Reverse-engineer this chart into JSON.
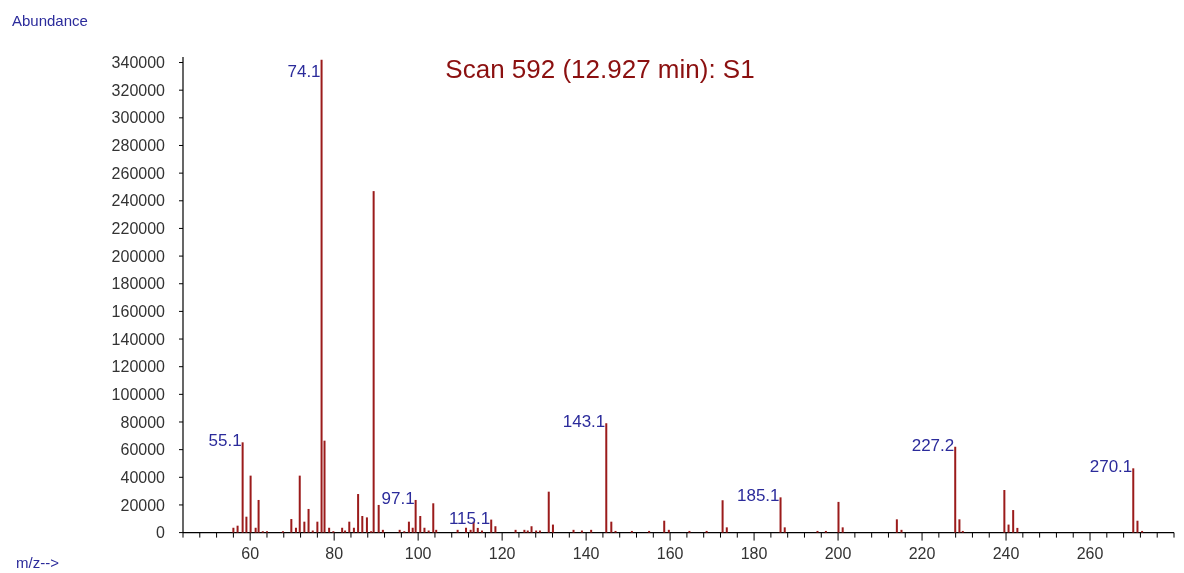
{
  "chart_data": {
    "type": "bar",
    "title": "Scan 592 (12.927 min): S1",
    "xlabel": "m/z-->",
    "ylabel": "Abundance",
    "x": [
      56.0,
      57.0,
      58.2,
      59.1,
      60.1,
      61.3,
      62.0,
      63.0,
      64.0,
      67.8,
      69.8,
      70.9,
      71.8,
      72.9,
      73.9,
      74.9,
      76.0,
      77.0,
      77.7,
      78.8,
      79.8,
      81.9,
      82.6,
      83.6,
      84.7,
      85.7,
      86.7,
      87.8,
      88.8,
      89.4,
      90.6,
      91.6,
      95.6,
      96.7,
      97.8,
      98.7,
      99.4,
      100.5,
      101.5,
      102.5,
      103.6,
      104.3,
      109.4,
      111.4,
      112.5,
      113.2,
      114.2,
      115.2,
      117.4,
      118.4,
      123.2,
      125.3,
      126.1,
      127.0,
      128.1,
      129.0,
      131.1,
      132.1,
      137.0,
      139.0,
      141.2,
      144.8,
      146.0,
      147.0,
      150.9,
      155.0,
      158.6,
      159.7,
      164.6,
      168.7,
      172.5,
      173.5,
      186.3,
      187.3,
      195.1,
      197.1,
      200.1,
      201.1,
      214.0,
      215.1,
      227.9,
      228.9,
      229.7,
      239.6,
      240.6,
      241.7,
      242.7,
      270.3,
      271.3,
      272.4
    ],
    "series": [
      {
        "color": "#9b1b1b",
        "values": [
          3500,
          5000,
          65300,
          11500,
          41200,
          3500,
          23600,
          1000,
          1000,
          1000,
          9800,
          3500,
          41200,
          7900,
          17100,
          1500,
          7900,
          342000,
          66500,
          3500,
          1000,
          3500,
          1500,
          7900,
          3500,
          27900,
          12000,
          11000,
          1000,
          247000,
          20000,
          2000,
          2000,
          1000,
          7900,
          3500,
          23600,
          12000,
          3500,
          1500,
          21200,
          2000,
          2000,
          3500,
          2000,
          7900,
          3400,
          1500,
          9400,
          4600,
          2000,
          2000,
          1500,
          4600,
          1500,
          1500,
          29600,
          5800,
          2000,
          1500,
          2000,
          79100,
          7900,
          1200,
          1200,
          1200,
          8600,
          2000,
          1200,
          1200,
          23400,
          3800,
          25500,
          3800,
          1200,
          1200,
          22200,
          3800,
          9600,
          2000,
          62100,
          9600,
          1200,
          30800,
          5800,
          16300,
          3400,
          46500,
          8600,
          1200
        ]
      }
    ],
    "xlim": [
      44,
      280
    ],
    "xticks": [
      {
        "value": 44,
        "label": null
      },
      {
        "value": 48,
        "label": null
      },
      {
        "value": 52,
        "label": null
      },
      {
        "value": 56,
        "label": null
      },
      60,
      {
        "value": 64,
        "label": null
      },
      {
        "value": 68,
        "label": null
      },
      {
        "value": 72,
        "label": null
      },
      {
        "value": 76,
        "label": null
      },
      80,
      {
        "value": 84,
        "label": null
      },
      {
        "value": 88,
        "label": null
      },
      {
        "value": 92,
        "label": null
      },
      {
        "value": 96,
        "label": null
      },
      100,
      {
        "value": 104,
        "label": null
      },
      {
        "value": 108,
        "label": null
      },
      {
        "value": 112,
        "label": null
      },
      {
        "value": 116,
        "label": null
      },
      120,
      {
        "value": 124,
        "label": null
      },
      {
        "value": 128,
        "label": null
      },
      {
        "value": 132,
        "label": null
      },
      {
        "value": 136,
        "label": null
      },
      140,
      {
        "value": 144,
        "label": null
      },
      {
        "value": 148,
        "label": null
      },
      {
        "value": 152,
        "label": null
      },
      {
        "value": 156,
        "label": null
      },
      160,
      {
        "value": 164,
        "label": null
      },
      {
        "value": 168,
        "label": null
      },
      {
        "value": 172,
        "label": null
      },
      {
        "value": 176,
        "label": null
      },
      180,
      {
        "value": 184,
        "label": null
      },
      {
        "value": 188,
        "label": null
      },
      {
        "value": 192,
        "label": null
      },
      {
        "value": 196,
        "label": null
      },
      200,
      {
        "value": 204,
        "label": null
      },
      {
        "value": 208,
        "label": null
      },
      {
        "value": 212,
        "label": null
      },
      {
        "value": 216,
        "label": null
      },
      220,
      {
        "value": 224,
        "label": null
      },
      {
        "value": 228,
        "label": null
      },
      {
        "value": 232,
        "label": null
      },
      {
        "value": 236,
        "label": null
      },
      240,
      {
        "value": 244,
        "label": null
      },
      {
        "value": 248,
        "label": null
      },
      {
        "value": 252,
        "label": null
      },
      {
        "value": 256,
        "label": null
      },
      260,
      {
        "value": 264,
        "label": null
      },
      {
        "value": 268,
        "label": null
      },
      {
        "value": 272,
        "label": null
      },
      {
        "value": 276,
        "label": null
      },
      {
        "value": 280,
        "label": null
      }
    ],
    "ylim": [
      0,
      344000
    ],
    "yticks": [
      0,
      20000,
      40000,
      60000,
      80000,
      100000,
      120000,
      140000,
      160000,
      180000,
      200000,
      220000,
      240000,
      260000,
      280000,
      300000,
      320000,
      340000
    ],
    "annotations": [
      {
        "text": "55.1",
        "x": 58.2,
        "y": 65300
      },
      {
        "text": "74.1",
        "x": 77.0,
        "y": 342000
      },
      {
        "text": "97.1",
        "x": 99.4,
        "y": 23600
      },
      {
        "text": "115.1",
        "x": 117.4,
        "y": 9400
      },
      {
        "text": "143.1",
        "x": 144.8,
        "y": 79100
      },
      {
        "text": "185.1",
        "x": 186.3,
        "y": 25500
      },
      {
        "text": "227.2",
        "x": 227.9,
        "y": 62100
      },
      {
        "text": "270.1",
        "x": 270.3,
        "y": 46500
      }
    ],
    "grid": false
  }
}
